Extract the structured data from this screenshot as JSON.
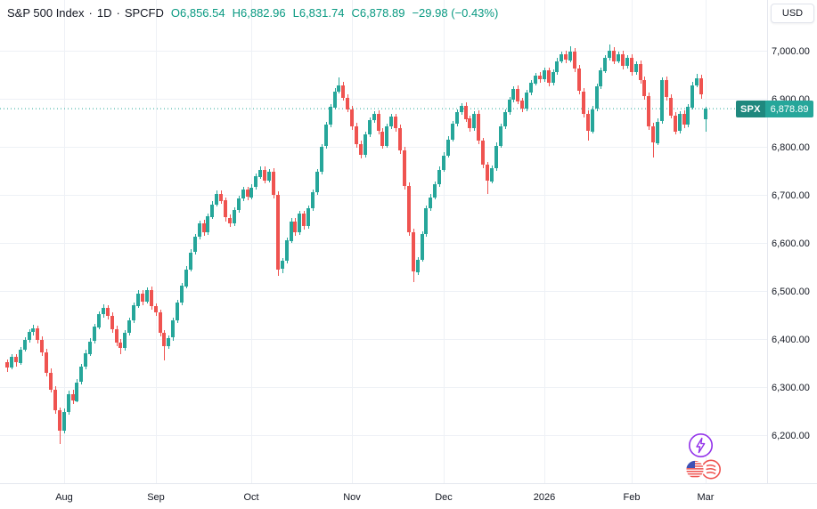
{
  "header": {
    "symbol": "S&P 500 Index",
    "separator": "·",
    "timeframe": "1D",
    "exchange": "SPCFD",
    "ohlc": {
      "o_label": "O",
      "o_value": "6,856.54",
      "h_label": "H",
      "h_value": "6,882.96",
      "l_label": "L",
      "l_value": "6,831.74",
      "c_label": "C",
      "c_value": "6,878.89"
    },
    "change": "−29.98 (−0.43%)"
  },
  "top_right": {
    "currency_label": "USD"
  },
  "price_label": {
    "symbol": "SPX",
    "price": "6,878.89"
  },
  "colors": {
    "up": "#26a69a",
    "down": "#ef5350",
    "legend_green": "#089981",
    "grid": "#eef1f6",
    "axis_text": "#131722",
    "border": "#e4e7ee",
    "badge_bg": "#26a69a",
    "fab_purple": "#9333ea",
    "flag_blue": "#3f51b5",
    "flag_red": "#ef5350"
  },
  "chart_data": {
    "type": "candlestick",
    "title": "S&P 500 Index",
    "symbol": "SPX",
    "timeframe": "1D",
    "exchange": "SPCFD",
    "currency": "USD",
    "last_price": 6878.89,
    "grid": true,
    "y_range": [
      6100,
      7105
    ],
    "y_ticks": [
      7000,
      6900,
      6800,
      6700,
      6600,
      6500,
      6400,
      6300,
      6200
    ],
    "y_tick_labels": [
      "7,000.00",
      "6,900.00",
      "6,800.00",
      "6,700.00",
      "6,600.00",
      "6,500.00",
      "6,400.00",
      "6,300.00",
      "6,200.00"
    ],
    "x_ticks": [
      {
        "label": "Aug",
        "index": 13
      },
      {
        "label": "Sep",
        "index": 34
      },
      {
        "label": "Oct",
        "index": 56
      },
      {
        "label": "Nov",
        "index": 79
      },
      {
        "label": "Dec",
        "index": 100
      },
      {
        "label": "2026",
        "index": 123
      },
      {
        "label": "Feb",
        "index": 143
      },
      {
        "label": "Mar",
        "index": 160
      }
    ],
    "candles": [
      [
        6352,
        6358,
        6331,
        6340
      ],
      [
        6340,
        6368,
        6336,
        6362
      ],
      [
        6362,
        6369,
        6342,
        6350
      ],
      [
        6350,
        6383,
        6347,
        6378
      ],
      [
        6378,
        6404,
        6373,
        6398
      ],
      [
        6398,
        6421,
        6392,
        6415
      ],
      [
        6415,
        6430,
        6408,
        6422
      ],
      [
        6422,
        6428,
        6391,
        6398
      ],
      [
        6398,
        6405,
        6365,
        6372
      ],
      [
        6372,
        6380,
        6322,
        6330
      ],
      [
        6330,
        6338,
        6288,
        6295
      ],
      [
        6295,
        6302,
        6245,
        6252
      ],
      [
        6252,
        6258,
        6182,
        6210
      ],
      [
        6210,
        6255,
        6203,
        6248
      ],
      [
        6248,
        6292,
        6242,
        6285
      ],
      [
        6285,
        6294,
        6264,
        6272
      ],
      [
        6272,
        6316,
        6268,
        6310
      ],
      [
        6310,
        6348,
        6305,
        6342
      ],
      [
        6342,
        6377,
        6337,
        6370
      ],
      [
        6370,
        6401,
        6364,
        6395
      ],
      [
        6395,
        6431,
        6390,
        6425
      ],
      [
        6425,
        6458,
        6420,
        6452
      ],
      [
        6452,
        6472,
        6445,
        6465
      ],
      [
        6465,
        6470,
        6441,
        6448
      ],
      [
        6448,
        6455,
        6413,
        6420
      ],
      [
        6420,
        6427,
        6385,
        6392
      ],
      [
        6392,
        6399,
        6368,
        6380
      ],
      [
        6380,
        6418,
        6375,
        6412
      ],
      [
        6412,
        6444,
        6407,
        6438
      ],
      [
        6438,
        6476,
        6433,
        6470
      ],
      [
        6470,
        6502,
        6465,
        6495
      ],
      [
        6495,
        6501,
        6471,
        6478
      ],
      [
        6478,
        6508,
        6473,
        6502
      ],
      [
        6502,
        6509,
        6461,
        6468
      ],
      [
        6468,
        6474,
        6448,
        6455
      ],
      [
        6455,
        6461,
        6405,
        6412
      ],
      [
        6412,
        6419,
        6355,
        6385
      ],
      [
        6385,
        6408,
        6380,
        6402
      ],
      [
        6402,
        6444,
        6397,
        6438
      ],
      [
        6438,
        6481,
        6433,
        6475
      ],
      [
        6475,
        6516,
        6470,
        6510
      ],
      [
        6510,
        6551,
        6505,
        6545
      ],
      [
        6545,
        6586,
        6540,
        6580
      ],
      [
        6580,
        6618,
        6575,
        6612
      ],
      [
        6612,
        6646,
        6607,
        6640
      ],
      [
        6640,
        6647,
        6615,
        6622
      ],
      [
        6622,
        6661,
        6617,
        6655
      ],
      [
        6655,
        6686,
        6650,
        6680
      ],
      [
        6680,
        6708,
        6675,
        6702
      ],
      [
        6702,
        6709,
        6681,
        6688
      ],
      [
        6688,
        6695,
        6645,
        6652
      ],
      [
        6652,
        6659,
        6633,
        6640
      ],
      [
        6640,
        6674,
        6635,
        6668
      ],
      [
        6668,
        6698,
        6663,
        6692
      ],
      [
        6692,
        6716,
        6687,
        6710
      ],
      [
        6710,
        6717,
        6688,
        6695
      ],
      [
        6695,
        6721,
        6690,
        6715
      ],
      [
        6715,
        6744,
        6710,
        6738
      ],
      [
        6738,
        6758,
        6733,
        6752
      ],
      [
        6752,
        6759,
        6723,
        6730
      ],
      [
        6730,
        6754,
        6725,
        6748
      ],
      [
        6748,
        6755,
        6692,
        6700
      ],
      [
        6700,
        6707,
        6532,
        6545
      ],
      [
        6545,
        6568,
        6536,
        6562
      ],
      [
        6562,
        6611,
        6557,
        6605
      ],
      [
        6605,
        6651,
        6600,
        6645
      ],
      [
        6645,
        6652,
        6615,
        6622
      ],
      [
        6622,
        6666,
        6617,
        6660
      ],
      [
        6660,
        6667,
        6628,
        6635
      ],
      [
        6635,
        6678,
        6630,
        6672
      ],
      [
        6672,
        6711,
        6667,
        6705
      ],
      [
        6705,
        6754,
        6700,
        6748
      ],
      [
        6748,
        6806,
        6743,
        6800
      ],
      [
        6800,
        6851,
        6795,
        6845
      ],
      [
        6845,
        6888,
        6840,
        6882
      ],
      [
        6882,
        6921,
        6877,
        6915
      ],
      [
        6915,
        6944,
        6910,
        6928
      ],
      [
        6928,
        6935,
        6895,
        6902
      ],
      [
        6902,
        6909,
        6871,
        6878
      ],
      [
        6878,
        6885,
        6835,
        6842
      ],
      [
        6842,
        6849,
        6798,
        6805
      ],
      [
        6805,
        6812,
        6775,
        6782
      ],
      [
        6782,
        6831,
        6777,
        6825
      ],
      [
        6825,
        6861,
        6820,
        6855
      ],
      [
        6855,
        6874,
        6850,
        6868
      ],
      [
        6868,
        6875,
        6825,
        6832
      ],
      [
        6832,
        6839,
        6795,
        6802
      ],
      [
        6802,
        6848,
        6797,
        6842
      ],
      [
        6842,
        6868,
        6837,
        6862
      ],
      [
        6862,
        6869,
        6831,
        6838
      ],
      [
        6838,
        6845,
        6785,
        6792
      ],
      [
        6792,
        6799,
        6711,
        6718
      ],
      [
        6718,
        6725,
        6615,
        6622
      ],
      [
        6622,
        6629,
        6518,
        6540
      ],
      [
        6540,
        6571,
        6533,
        6565
      ],
      [
        6565,
        6624,
        6560,
        6618
      ],
      [
        6618,
        6678,
        6613,
        6672
      ],
      [
        6672,
        6701,
        6667,
        6695
      ],
      [
        6695,
        6728,
        6690,
        6722
      ],
      [
        6722,
        6758,
        6717,
        6752
      ],
      [
        6752,
        6788,
        6747,
        6782
      ],
      [
        6782,
        6821,
        6777,
        6815
      ],
      [
        6815,
        6854,
        6810,
        6848
      ],
      [
        6848,
        6878,
        6843,
        6872
      ],
      [
        6872,
        6891,
        6867,
        6885
      ],
      [
        6885,
        6892,
        6851,
        6858
      ],
      [
        6858,
        6865,
        6831,
        6838
      ],
      [
        6838,
        6874,
        6833,
        6868
      ],
      [
        6868,
        6875,
        6805,
        6812
      ],
      [
        6812,
        6819,
        6755,
        6762
      ],
      [
        6762,
        6769,
        6701,
        6728
      ],
      [
        6728,
        6761,
        6723,
        6755
      ],
      [
        6755,
        6808,
        6750,
        6802
      ],
      [
        6802,
        6848,
        6797,
        6842
      ],
      [
        6842,
        6878,
        6837,
        6872
      ],
      [
        6872,
        6904,
        6867,
        6898
      ],
      [
        6898,
        6926,
        6893,
        6920
      ],
      [
        6920,
        6927,
        6888,
        6895
      ],
      [
        6895,
        6902,
        6871,
        6878
      ],
      [
        6878,
        6918,
        6873,
        6912
      ],
      [
        6912,
        6938,
        6907,
        6932
      ],
      [
        6932,
        6954,
        6927,
        6948
      ],
      [
        6948,
        6955,
        6933,
        6940
      ],
      [
        6940,
        6964,
        6935,
        6958
      ],
      [
        6958,
        6965,
        6925,
        6932
      ],
      [
        6932,
        6961,
        6927,
        6955
      ],
      [
        6955,
        6984,
        6950,
        6978
      ],
      [
        6978,
        6998,
        6973,
        6992
      ],
      [
        6992,
        6999,
        6973,
        6980
      ],
      [
        6980,
        7008,
        6975,
        6998
      ],
      [
        6998,
        7005,
        6955,
        6962
      ],
      [
        6962,
        6969,
        6908,
        6915
      ],
      [
        6915,
        6922,
        6861,
        6868
      ],
      [
        6868,
        6875,
        6812,
        6832
      ],
      [
        6832,
        6884,
        6827,
        6878
      ],
      [
        6878,
        6931,
        6873,
        6925
      ],
      [
        6925,
        6964,
        6920,
        6958
      ],
      [
        6958,
        6991,
        6953,
        6985
      ],
      [
        6985,
        7012,
        6980,
        7000
      ],
      [
        7000,
        7007,
        6971,
        6978
      ],
      [
        6978,
        6998,
        6973,
        6992
      ],
      [
        6992,
        6999,
        6961,
        6968
      ],
      [
        6968,
        6991,
        6963,
        6985
      ],
      [
        6985,
        6992,
        6948,
        6955
      ],
      [
        6955,
        6978,
        6950,
        6972
      ],
      [
        6972,
        6979,
        6931,
        6938
      ],
      [
        6938,
        6945,
        6898,
        6905
      ],
      [
        6905,
        6912,
        6835,
        6842
      ],
      [
        6842,
        6849,
        6778,
        6808
      ],
      [
        6808,
        6858,
        6803,
        6852
      ],
      [
        6852,
        6944,
        6847,
        6938
      ],
      [
        6938,
        6945,
        6895,
        6902
      ],
      [
        6902,
        6909,
        6858,
        6865
      ],
      [
        6865,
        6872,
        6825,
        6832
      ],
      [
        6832,
        6874,
        6827,
        6868
      ],
      [
        6868,
        6875,
        6838,
        6845
      ],
      [
        6845,
        6888,
        6840,
        6882
      ],
      [
        6882,
        6934,
        6877,
        6928
      ],
      [
        6928,
        6951,
        6923,
        6942
      ],
      [
        6942,
        6949,
        6899,
        6908.87
      ],
      [
        6856.54,
        6882.96,
        6831.74,
        6878.89
      ]
    ]
  }
}
